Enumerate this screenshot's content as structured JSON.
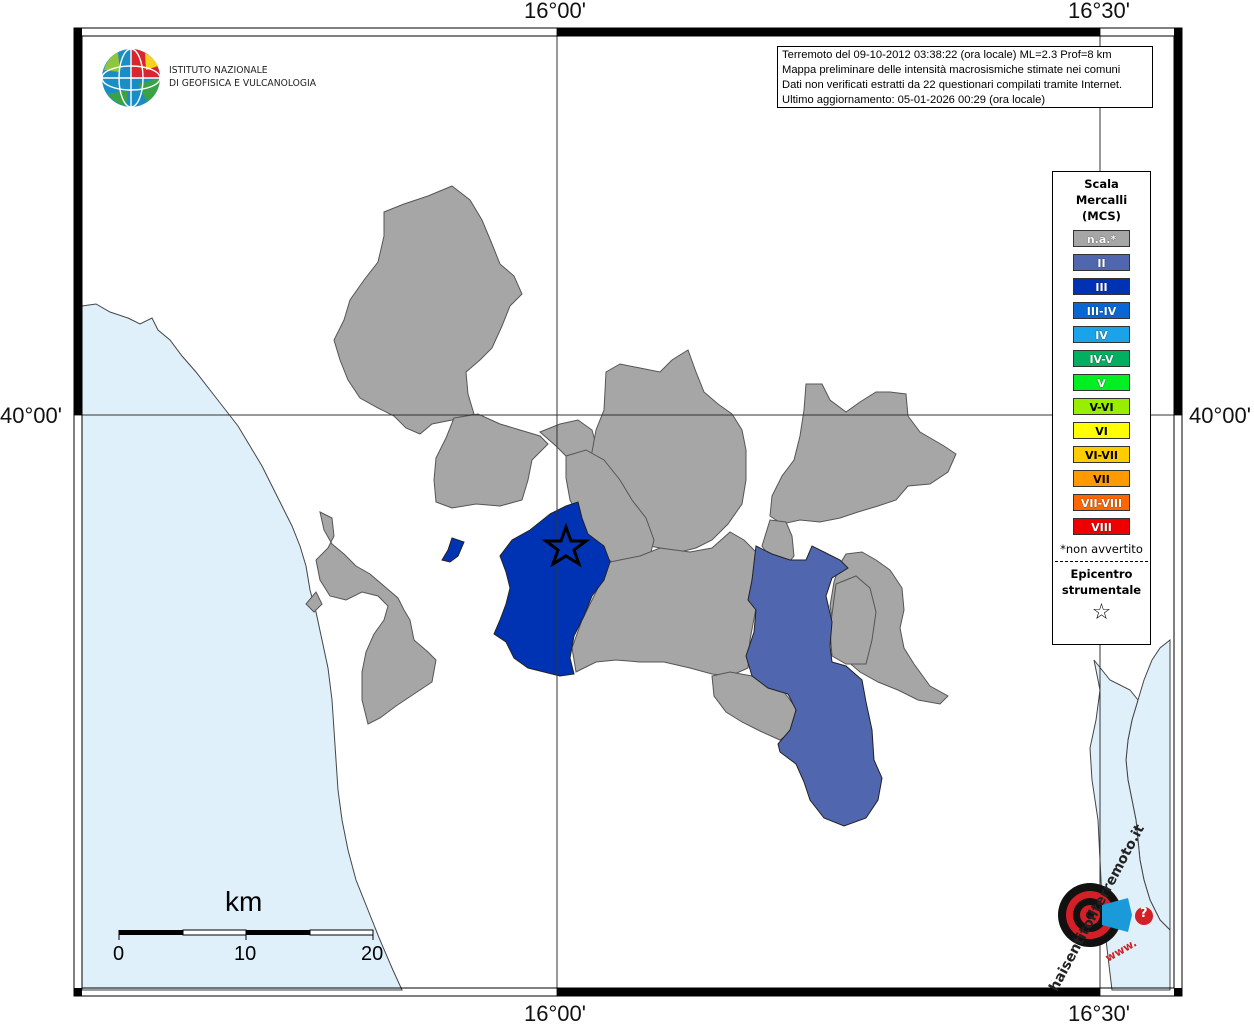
{
  "coordinates": {
    "lon_top_1": "16°00'",
    "lon_top_2": "16°30'",
    "lon_bottom_1": "16°00'",
    "lon_bottom_2": "16°30'",
    "lat_left": "40°00'",
    "lat_right": "40°00'"
  },
  "logo": {
    "line1": "ISTITUTO NAZIONALE",
    "line2": "DI GEOFISICA E VULCANOLOGIA"
  },
  "info": {
    "line1": "Terremoto del 09-10-2012 03:38:22 (ora locale) ML=2.3 Prof=8 km",
    "line2": "Mappa preliminare delle intensità macrosismiche stimate nei comuni",
    "line3": "Dati non verificati estratti da 22 questionari compilati tramite Internet.",
    "line4": "Ultimo aggiornamento: 05-01-2026 00:29 (ora locale)"
  },
  "legend": {
    "title_line1": "Scala",
    "title_line2": "Mercalli",
    "title_line3": "(MCS)",
    "items": [
      {
        "label": "n.a.*",
        "color": "#a6a6a6"
      },
      {
        "label": "II",
        "color": "#5066ae"
      },
      {
        "label": "III",
        "color": "#0033b4"
      },
      {
        "label": "III-IV",
        "color": "#0a66d2"
      },
      {
        "label": "IV",
        "color": "#1aa3e8"
      },
      {
        "label": "IV-V",
        "color": "#00b060"
      },
      {
        "label": "V",
        "color": "#00ee22"
      },
      {
        "label": "V-VI",
        "color": "#99ee00"
      },
      {
        "label": "VI",
        "color": "#ffff00"
      },
      {
        "label": "VI-VII",
        "color": "#ffcc00"
      },
      {
        "label": "VII",
        "color": "#ff9900"
      },
      {
        "label": "VII-VIII",
        "color": "#ff6600"
      },
      {
        "label": "VIII",
        "color": "#ee0000"
      }
    ],
    "note": "*non avvertito",
    "epicenter_line1": "Epicentro",
    "epicenter_line2": "strumentale",
    "star": "☆"
  },
  "scale_bar": {
    "title": "km",
    "ticks": [
      "0",
      "10",
      "20"
    ]
  },
  "hst_logo": {
    "text": "haisentitoilterremoto.it",
    "www": "www.",
    "q": "?"
  },
  "colors": {
    "sea": "#dff0fb",
    "municipality_na": "#a6a6a6",
    "intensity_II": "#5066ae",
    "intensity_III": "#0033b4"
  }
}
